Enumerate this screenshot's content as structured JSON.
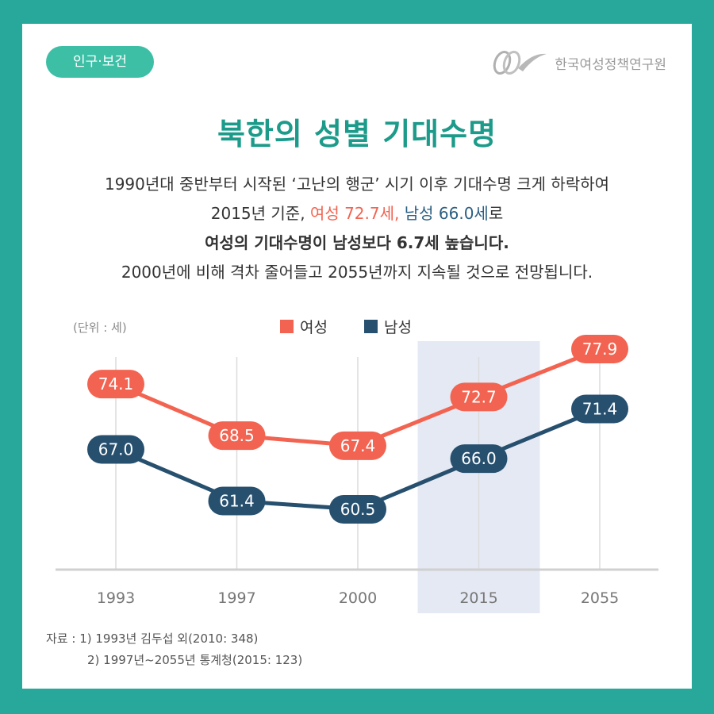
{
  "badge": "인구·보건",
  "org": "한국여성정책연구원",
  "title": "북한의 성별 기대수명",
  "desc": {
    "line1": "1990년대 중반부터 시작된 ‘고난의 행군’ 시기 이후 기대수명 크게 하락하여",
    "line2_pre": "2015년 기준, ",
    "line2_female": "여성 72.7세,",
    "line2_male": " 남성 66.0세",
    "line2_post": "로",
    "line3": "여성의 기대수명이 남성보다 6.7세 높습니다.",
    "line4": "2000년에 비해 격차 줄어들고 2055년까지 지속될 것으로 전망됩니다."
  },
  "unit_label": "(단위 : 세)",
  "source": {
    "line1": "자료 : 1) 1993년 김두섭 외(2010: 348)",
    "line2": "2) 1997년~2055년 통계청(2015: 123)"
  },
  "colors": {
    "background": "#27a89a",
    "female": "#f26451",
    "male": "#27506f",
    "title": "#1d9b8a",
    "highlight_band": "#e5e9f3"
  },
  "chart_data": {
    "type": "line",
    "categories": [
      "1993",
      "1997",
      "2000",
      "2015",
      "2055"
    ],
    "series": [
      {
        "name": "여성",
        "values": [
          74.1,
          68.5,
          67.4,
          72.7,
          77.9
        ],
        "labels": [
          "74.1",
          "68.5",
          "67.4",
          "72.7",
          "77.9"
        ]
      },
      {
        "name": "남성",
        "values": [
          67.0,
          61.4,
          60.5,
          66.0,
          71.4
        ],
        "labels": [
          "67.0",
          "61.4",
          "60.5",
          "66.0",
          "71.4"
        ]
      }
    ],
    "highlight_category": "2015",
    "legend_position": "top-center",
    "grid": "vertical"
  }
}
